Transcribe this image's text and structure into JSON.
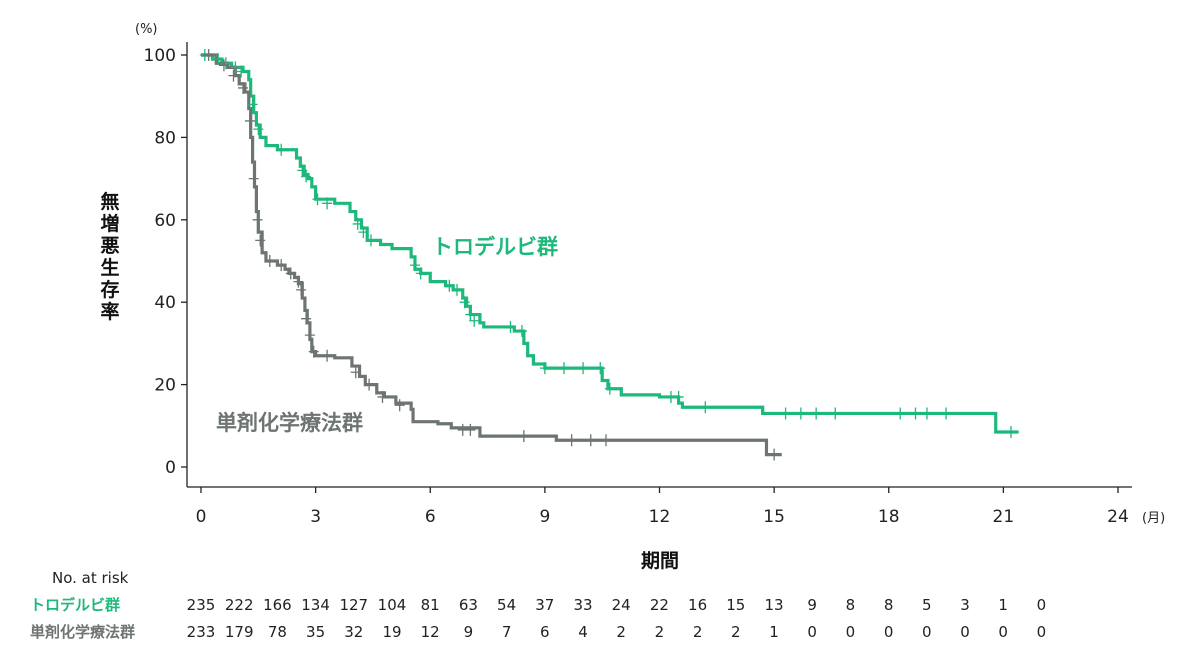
{
  "chart_data": {
    "type": "line",
    "subtype": "kaplan-meier step curve with censor marks",
    "ylabel": "無増悪生存率",
    "y_unit": "(%)",
    "xlabel": "期間",
    "x_unit": "(月)",
    "xlim": [
      0,
      24
    ],
    "ylim": [
      0,
      100
    ],
    "x_ticks": [
      0,
      3,
      6,
      9,
      12,
      15,
      18,
      21,
      24
    ],
    "y_ticks": [
      0,
      20,
      40,
      60,
      80,
      100
    ],
    "grid": false,
    "series": [
      {
        "name": "トロデルビ群",
        "color": "#1db97b",
        "steps": [
          [
            0,
            100
          ],
          [
            0.3,
            99
          ],
          [
            0.55,
            98
          ],
          [
            0.8,
            97
          ],
          [
            1.1,
            96
          ],
          [
            1.25,
            94
          ],
          [
            1.3,
            90
          ],
          [
            1.38,
            86
          ],
          [
            1.45,
            83
          ],
          [
            1.55,
            80
          ],
          [
            1.7,
            78
          ],
          [
            2.0,
            77
          ],
          [
            2.5,
            75
          ],
          [
            2.6,
            73
          ],
          [
            2.7,
            71
          ],
          [
            2.8,
            70
          ],
          [
            2.9,
            68
          ],
          [
            3.0,
            65
          ],
          [
            3.5,
            64
          ],
          [
            3.9,
            62
          ],
          [
            4.05,
            60
          ],
          [
            4.2,
            58
          ],
          [
            4.35,
            55
          ],
          [
            4.7,
            54
          ],
          [
            5.0,
            53
          ],
          [
            5.5,
            51
          ],
          [
            5.6,
            48
          ],
          [
            5.75,
            47
          ],
          [
            6.0,
            45
          ],
          [
            6.4,
            44
          ],
          [
            6.6,
            43
          ],
          [
            6.85,
            41
          ],
          [
            6.95,
            39
          ],
          [
            7.05,
            37
          ],
          [
            7.3,
            35
          ],
          [
            7.4,
            34
          ],
          [
            8.2,
            33
          ],
          [
            8.45,
            30
          ],
          [
            8.55,
            27
          ],
          [
            8.7,
            25
          ],
          [
            9.0,
            24
          ],
          [
            10.5,
            21
          ],
          [
            10.65,
            19
          ],
          [
            11.0,
            17.5
          ],
          [
            12.0,
            17
          ],
          [
            12.5,
            15.5
          ],
          [
            12.6,
            14.5
          ],
          [
            14.7,
            13
          ],
          [
            20.8,
            8.5
          ],
          [
            21.4,
            8.5
          ]
        ],
        "censored": [
          [
            0.1,
            100
          ],
          [
            0.45,
            99
          ],
          [
            0.65,
            98
          ],
          [
            0.9,
            97
          ],
          [
            1.05,
            96
          ],
          [
            1.35,
            88
          ],
          [
            1.5,
            82
          ],
          [
            2.1,
            77
          ],
          [
            2.65,
            72
          ],
          [
            2.75,
            70.5
          ],
          [
            3.05,
            65
          ],
          [
            3.3,
            64
          ],
          [
            4.1,
            59
          ],
          [
            4.25,
            57
          ],
          [
            4.45,
            55
          ],
          [
            5.6,
            49
          ],
          [
            5.75,
            47
          ],
          [
            6.5,
            44
          ],
          [
            6.7,
            43
          ],
          [
            6.9,
            40
          ],
          [
            7.05,
            37
          ],
          [
            7.15,
            35.5
          ],
          [
            8.1,
            34
          ],
          [
            8.4,
            33
          ],
          [
            9.0,
            24
          ],
          [
            9.5,
            24
          ],
          [
            10.0,
            24
          ],
          [
            10.45,
            24
          ],
          [
            10.7,
            19
          ],
          [
            12.3,
            17
          ],
          [
            12.5,
            17
          ],
          [
            13.2,
            14.5
          ],
          [
            15.3,
            13
          ],
          [
            15.7,
            13
          ],
          [
            16.1,
            13
          ],
          [
            16.6,
            13
          ],
          [
            18.3,
            13
          ],
          [
            18.7,
            13
          ],
          [
            19.0,
            13
          ],
          [
            19.5,
            13
          ],
          [
            21.2,
            8.5
          ]
        ]
      },
      {
        "name": "単剤化学療法群",
        "color": "#6d7472",
        "steps": [
          [
            0,
            100
          ],
          [
            0.4,
            98
          ],
          [
            0.7,
            97
          ],
          [
            0.9,
            95
          ],
          [
            1.0,
            93
          ],
          [
            1.15,
            91
          ],
          [
            1.25,
            87
          ],
          [
            1.3,
            80
          ],
          [
            1.35,
            74
          ],
          [
            1.4,
            68
          ],
          [
            1.45,
            62
          ],
          [
            1.5,
            57
          ],
          [
            1.6,
            52
          ],
          [
            1.7,
            50
          ],
          [
            2.0,
            49
          ],
          [
            2.2,
            48
          ],
          [
            2.3,
            47
          ],
          [
            2.45,
            46
          ],
          [
            2.55,
            44.5
          ],
          [
            2.65,
            41
          ],
          [
            2.72,
            38
          ],
          [
            2.78,
            35
          ],
          [
            2.85,
            31
          ],
          [
            2.9,
            28
          ],
          [
            3.0,
            27
          ],
          [
            3.5,
            26.5
          ],
          [
            3.95,
            24.5
          ],
          [
            4.15,
            22
          ],
          [
            4.3,
            20
          ],
          [
            4.6,
            18
          ],
          [
            4.8,
            17
          ],
          [
            5.1,
            15.5
          ],
          [
            5.5,
            14
          ],
          [
            5.55,
            11
          ],
          [
            6.2,
            10.5
          ],
          [
            6.55,
            9.5
          ],
          [
            7.3,
            7.5
          ],
          [
            9.3,
            6.5
          ],
          [
            14.8,
            3
          ],
          [
            15.2,
            3
          ]
        ],
        "censored": [
          [
            0.2,
            100
          ],
          [
            0.6,
            97.5
          ],
          [
            0.85,
            95
          ],
          [
            1.1,
            92
          ],
          [
            1.28,
            84
          ],
          [
            1.38,
            70
          ],
          [
            1.48,
            60
          ],
          [
            1.55,
            55
          ],
          [
            1.8,
            50
          ],
          [
            2.1,
            49
          ],
          [
            2.35,
            47
          ],
          [
            2.55,
            45
          ],
          [
            2.62,
            43
          ],
          [
            2.75,
            36
          ],
          [
            2.85,
            32
          ],
          [
            2.95,
            28
          ],
          [
            3.3,
            27
          ],
          [
            4.05,
            23
          ],
          [
            4.4,
            20
          ],
          [
            4.75,
            17
          ],
          [
            5.2,
            15
          ],
          [
            6.85,
            9
          ],
          [
            7.05,
            9
          ],
          [
            8.45,
            7.5
          ],
          [
            9.7,
            6.5
          ],
          [
            10.2,
            6.5
          ],
          [
            10.6,
            6.5
          ],
          [
            15.0,
            3
          ]
        ]
      }
    ],
    "annotations": [
      {
        "series": 0,
        "text": "トロデルビ群",
        "color": "#1db97b"
      },
      {
        "series": 1,
        "text": "単剤化学療法群",
        "color": "#6d7472"
      }
    ],
    "at_risk": {
      "title": "No. at risk",
      "rows": [
        {
          "label": "トロデルビ群",
          "color": "#1db97b",
          "values": [
            235,
            222,
            166,
            134,
            127,
            104,
            81,
            63,
            54,
            37,
            33,
            24,
            22,
            16,
            15,
            13,
            9,
            8,
            8,
            5,
            3,
            1,
            0
          ]
        },
        {
          "label": "単剤化学療法群",
          "color": "#6d7472",
          "values": [
            233,
            179,
            78,
            35,
            32,
            19,
            12,
            9,
            7,
            6,
            4,
            2,
            2,
            2,
            2,
            1,
            0,
            0,
            0,
            0,
            0,
            0,
            0
          ]
        }
      ]
    }
  }
}
